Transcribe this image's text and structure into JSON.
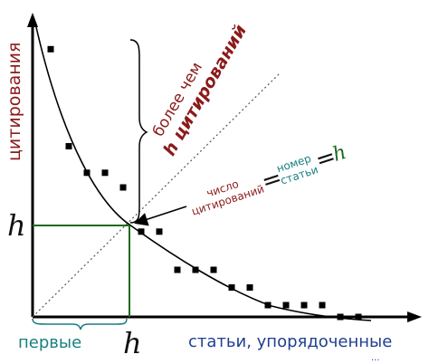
{
  "labels": {
    "y_axis": "цитирования",
    "x_axis": "статьи, упорядоченные",
    "x_axis_trail": "...",
    "h_left": "h",
    "h_bottom": "h",
    "first": "первые",
    "more_than_line1": "более чем",
    "more_than_line2": "h цитирований",
    "num_citations_line1": "число",
    "num_citations_line2": "цитирований",
    "equals_1": "=",
    "paper_num_line1": "номер",
    "paper_num_line2": "статьи",
    "equals_2": "=",
    "h_eq": "h"
  },
  "colors": {
    "axes": "#000000",
    "curve": "#000000",
    "points": "#000000",
    "diagonal": "#555555",
    "h_box": "#1e6b1e",
    "bracket_first": "#1f7a8a",
    "label_red": "#8b1a1a",
    "label_teal": "#1a7f7f",
    "label_green": "#1e6b1e",
    "label_blue": "#1f3f8f"
  },
  "chart_data": {
    "type": "scatter",
    "title": "",
    "xlabel": "статьи, упорядоченные",
    "ylabel": "цитирования",
    "points": [
      [
        1,
        9.1
      ],
      [
        2,
        5.8
      ],
      [
        3,
        4.9
      ],
      [
        4,
        4.9
      ],
      [
        5,
        4.4
      ],
      [
        6,
        2.9
      ],
      [
        7,
        2.9
      ],
      [
        8,
        1.6
      ],
      [
        9,
        1.6
      ],
      [
        10,
        1.6
      ],
      [
        11,
        1.0
      ],
      [
        12,
        1.0
      ],
      [
        13,
        0.4
      ],
      [
        14,
        0.4
      ],
      [
        15,
        0.4
      ],
      [
        16,
        0.4
      ],
      [
        17,
        0.0
      ],
      [
        18,
        0.0
      ]
    ],
    "h_index": 5,
    "xlim": [
      0,
      20
    ],
    "ylim": [
      0,
      10
    ]
  }
}
